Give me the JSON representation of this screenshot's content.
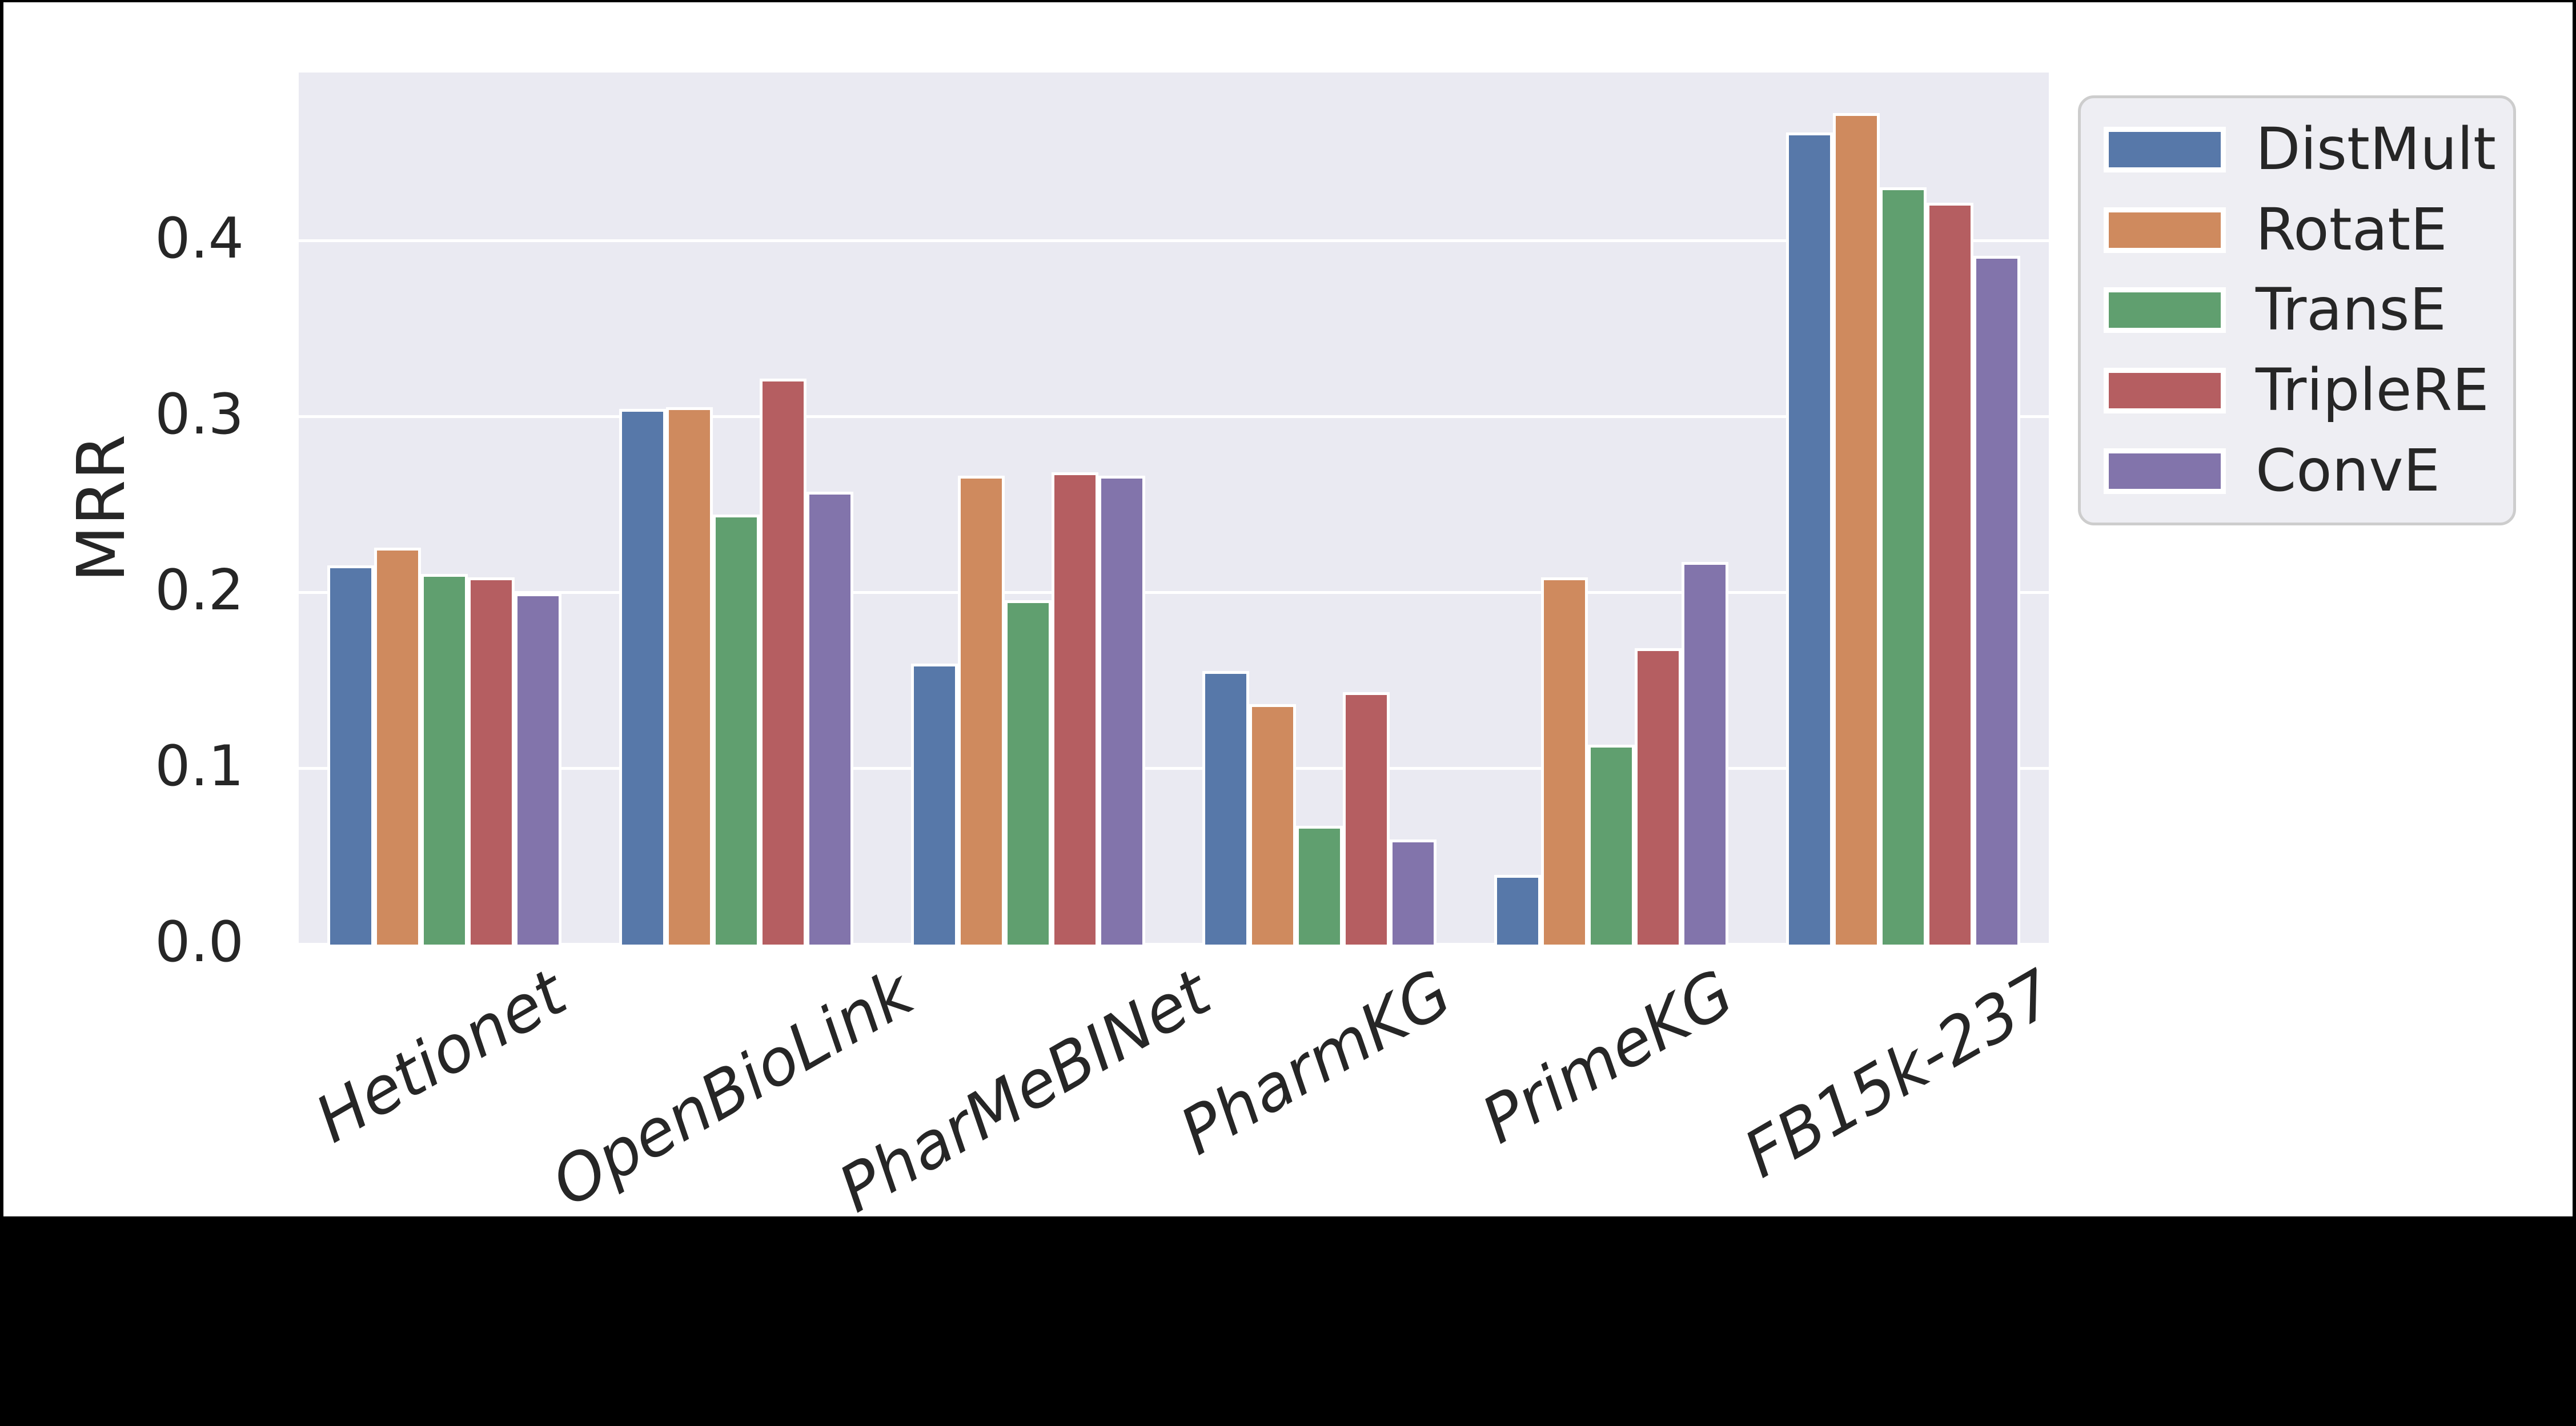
{
  "colors": {
    "canvas_bg": "#000000",
    "figure_bg": "#FFFFFF",
    "plot_bg": "#EAEAF2",
    "grid": "#FFFFFF",
    "text": "#262626",
    "bar_edge": "#FFFFFF",
    "legend_bg": "#EEEEF3",
    "legend_border": "#CDCDCD"
  },
  "chart_data": {
    "type": "bar",
    "title": "",
    "xlabel": "",
    "ylabel": "MRR",
    "categories": [
      "Hetionet",
      "OpenBioLink",
      "PharMeBINet",
      "PharmKG",
      "PrimeKG",
      "FB15k-237"
    ],
    "series": [
      {
        "name": "DistMult",
        "color": "#5778A9",
        "values": [
          0.214,
          0.303,
          0.158,
          0.154,
          0.038,
          0.46
        ]
      },
      {
        "name": "RotatE",
        "color": "#CF8A5E",
        "values": [
          0.224,
          0.304,
          0.265,
          0.135,
          0.207,
          0.471
        ]
      },
      {
        "name": "TransE",
        "color": "#609F6F",
        "values": [
          0.209,
          0.243,
          0.194,
          0.066,
          0.112,
          0.429
        ]
      },
      {
        "name": "TripleRE",
        "color": "#B55E61",
        "values": [
          0.207,
          0.32,
          0.267,
          0.142,
          0.167,
          0.42
        ]
      },
      {
        "name": "ConvE",
        "color": "#8274AB",
        "values": [
          0.198,
          0.256,
          0.265,
          0.058,
          0.216,
          0.39
        ]
      }
    ],
    "y_ticks": [
      {
        "label": "0.0",
        "value": 0.0
      },
      {
        "label": "0.1",
        "value": 0.1
      },
      {
        "label": "0.2",
        "value": 0.2
      },
      {
        "label": "0.3",
        "value": 0.3
      },
      {
        "label": "0.4",
        "value": 0.4
      }
    ],
    "ylim": [
      0,
      0.4958
    ],
    "grid": true,
    "legend_position": "upper-right-outside"
  }
}
